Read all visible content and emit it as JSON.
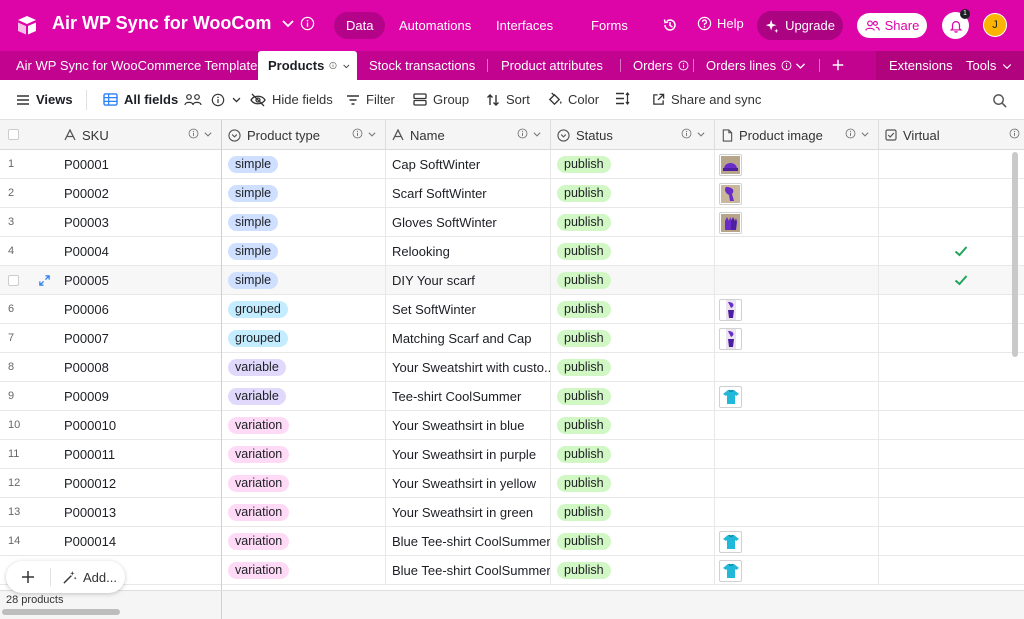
{
  "app": {
    "base_title": "Air WP Sync for WooCommerce Template",
    "base_title_visible": "Air WP Sync for WooComm...",
    "colors": {
      "brand": "#dd04a8",
      "tab_bar": "#c1038f",
      "accent_check": "#20a45c"
    }
  },
  "nav": {
    "items": [
      {
        "label": "Data",
        "active": true
      },
      {
        "label": "Automations",
        "active": false
      },
      {
        "label": "Interfaces",
        "active": false
      },
      {
        "label": "Forms",
        "active": false
      }
    ],
    "help_label": "Help",
    "upgrade_label": "Upgrade",
    "share_label": "Share",
    "notification_count": "1",
    "avatar_initial": "J"
  },
  "tables": {
    "items": [
      {
        "label": "Air WP Sync for WooCommerce Template"
      },
      {
        "label": "Products"
      },
      {
        "label": "Stock transactions"
      },
      {
        "label": "Product attributes"
      },
      {
        "label": "Orders"
      },
      {
        "label": "Orders lines"
      }
    ],
    "extensions_label": "Extensions",
    "tools_label": "Tools"
  },
  "toolbar": {
    "views_label": "Views",
    "all_fields_label": "All fields",
    "hide_fields_label": "Hide fields",
    "filter_label": "Filter",
    "group_label": "Group",
    "sort_label": "Sort",
    "color_label": "Color",
    "share_sync_label": "Share and sync"
  },
  "grid": {
    "columns": [
      {
        "label": "SKU",
        "icon": "text-icon"
      },
      {
        "label": "Product type",
        "icon": "single-select-icon"
      },
      {
        "label": "Name",
        "icon": "text-icon"
      },
      {
        "label": "Status",
        "icon": "single-select-icon"
      },
      {
        "label": "Product image",
        "icon": "attachment-icon"
      },
      {
        "label": "Virtual",
        "icon": "checkbox-icon"
      }
    ],
    "rows": [
      {
        "num": "1",
        "sku": "P00001",
        "type": "simple",
        "name": "Cap SoftWinter",
        "status": "publish",
        "image": "purple-cap",
        "virtual": false
      },
      {
        "num": "2",
        "sku": "P00002",
        "type": "simple",
        "name": "Scarf SoftWinter",
        "status": "publish",
        "image": "purple-scarf",
        "virtual": false
      },
      {
        "num": "3",
        "sku": "P00003",
        "type": "simple",
        "name": "Gloves SoftWinter",
        "status": "publish",
        "image": "purple-gloves",
        "virtual": false
      },
      {
        "num": "4",
        "sku": "P00004",
        "type": "simple",
        "name": "Relooking",
        "status": "publish",
        "image": "",
        "virtual": true
      },
      {
        "num": "",
        "sku": "P00005",
        "type": "simple",
        "name": "DIY Your scarf",
        "status": "publish",
        "image": "",
        "virtual": true
      },
      {
        "num": "6",
        "sku": "P00006",
        "type": "grouped",
        "name": "Set SoftWinter",
        "status": "publish",
        "image": "purple-set",
        "virtual": false
      },
      {
        "num": "7",
        "sku": "P00007",
        "type": "grouped",
        "name": "Matching Scarf and Cap",
        "status": "publish",
        "image": "purple-set",
        "virtual": false
      },
      {
        "num": "8",
        "sku": "P00008",
        "type": "variable",
        "name": "Your Sweatshirt with custo...",
        "status": "publish",
        "image": "",
        "virtual": false
      },
      {
        "num": "9",
        "sku": "P00009",
        "type": "variable",
        "name": "Tee-shirt CoolSummer",
        "status": "publish",
        "image": "cyan-tee",
        "virtual": false
      },
      {
        "num": "10",
        "sku": "P000010",
        "type": "variation",
        "name": "Your Sweathsirt in blue",
        "status": "publish",
        "image": "",
        "virtual": false
      },
      {
        "num": "11",
        "sku": "P000011",
        "type": "variation",
        "name": "Your Sweathsirt in purple",
        "status": "publish",
        "image": "",
        "virtual": false
      },
      {
        "num": "12",
        "sku": "P000012",
        "type": "variation",
        "name": "Your Sweathsirt in yellow",
        "status": "publish",
        "image": "",
        "virtual": false
      },
      {
        "num": "13",
        "sku": "P000013",
        "type": "variation",
        "name": "Your Sweathsirt in green",
        "status": "publish",
        "image": "",
        "virtual": false
      },
      {
        "num": "14",
        "sku": "P000014",
        "type": "variation",
        "name": "Blue Tee-shirt CoolSummer",
        "status": "publish",
        "image": "cyan-tee",
        "virtual": false
      },
      {
        "num": "",
        "sku": "",
        "type": "variation",
        "name": "Blue Tee-shirt CoolSummer",
        "status": "publish",
        "image": "cyan-tee",
        "virtual": false
      }
    ],
    "pill_colors": {
      "simple": "#cfdfff",
      "grouped": "#c4ecff",
      "variable": "#e0d9fc",
      "variation": "#ffdaf6",
      "publish": "#d1f7c4"
    }
  },
  "footer": {
    "record_count": "28 products",
    "add_label": "Add..."
  }
}
